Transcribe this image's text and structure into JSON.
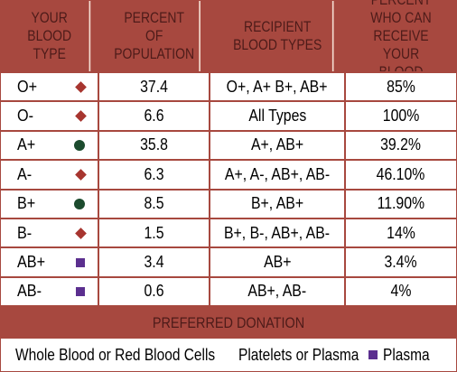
{
  "header": {
    "col_blood_type": "YOUR BLOOD TYPE",
    "col_percent_population": "PERCENT OF POPULATION",
    "col_recipient_types": "RECIPIENT BLOOD TYPES",
    "col_percent_receive": "PERCENT WHO CAN RECEIVE YOUR BLOOD"
  },
  "rows": [
    {
      "type": "O+",
      "marker": "diamond",
      "percent": "37.4",
      "recipients": "O+, A+ B+, AB+",
      "receive": "85%"
    },
    {
      "type": "O-",
      "marker": "diamond",
      "percent": "6.6",
      "recipients": "All Types",
      "receive": "100%"
    },
    {
      "type": "A+",
      "marker": "circle",
      "percent": "35.8",
      "recipients": "A+, AB+",
      "receive": "39.2%"
    },
    {
      "type": "A-",
      "marker": "diamond",
      "percent": "6.3",
      "recipients": "A+, A-, AB+, AB-",
      "receive": "46.10%"
    },
    {
      "type": "B+",
      "marker": "circle",
      "percent": "8.5",
      "recipients": "B+, AB+",
      "receive": "11.90%"
    },
    {
      "type": "B-",
      "marker": "diamond",
      "percent": "1.5",
      "recipients": "B+, B-, AB+, AB-",
      "receive": "14%"
    },
    {
      "type": "AB+",
      "marker": "square",
      "percent": "3.4",
      "recipients": "AB+",
      "receive": "3.4%"
    },
    {
      "type": "AB-",
      "marker": "square",
      "percent": "0.6",
      "recipients": "AB+, AB-",
      "receive": "4%"
    }
  ],
  "preferred_donation": "PREFERRED DONATION",
  "legend": {
    "whole_blood": "Whole Blood or Red Blood Cells",
    "platelets": "Platelets or Plasma",
    "plasma": "Plasma"
  },
  "colors": {
    "header_bg": "#a7483f",
    "header_text": "#4d1b19",
    "diamond": "#a7352f",
    "circle": "#1c4b2e",
    "square": "#5b2f8f"
  }
}
